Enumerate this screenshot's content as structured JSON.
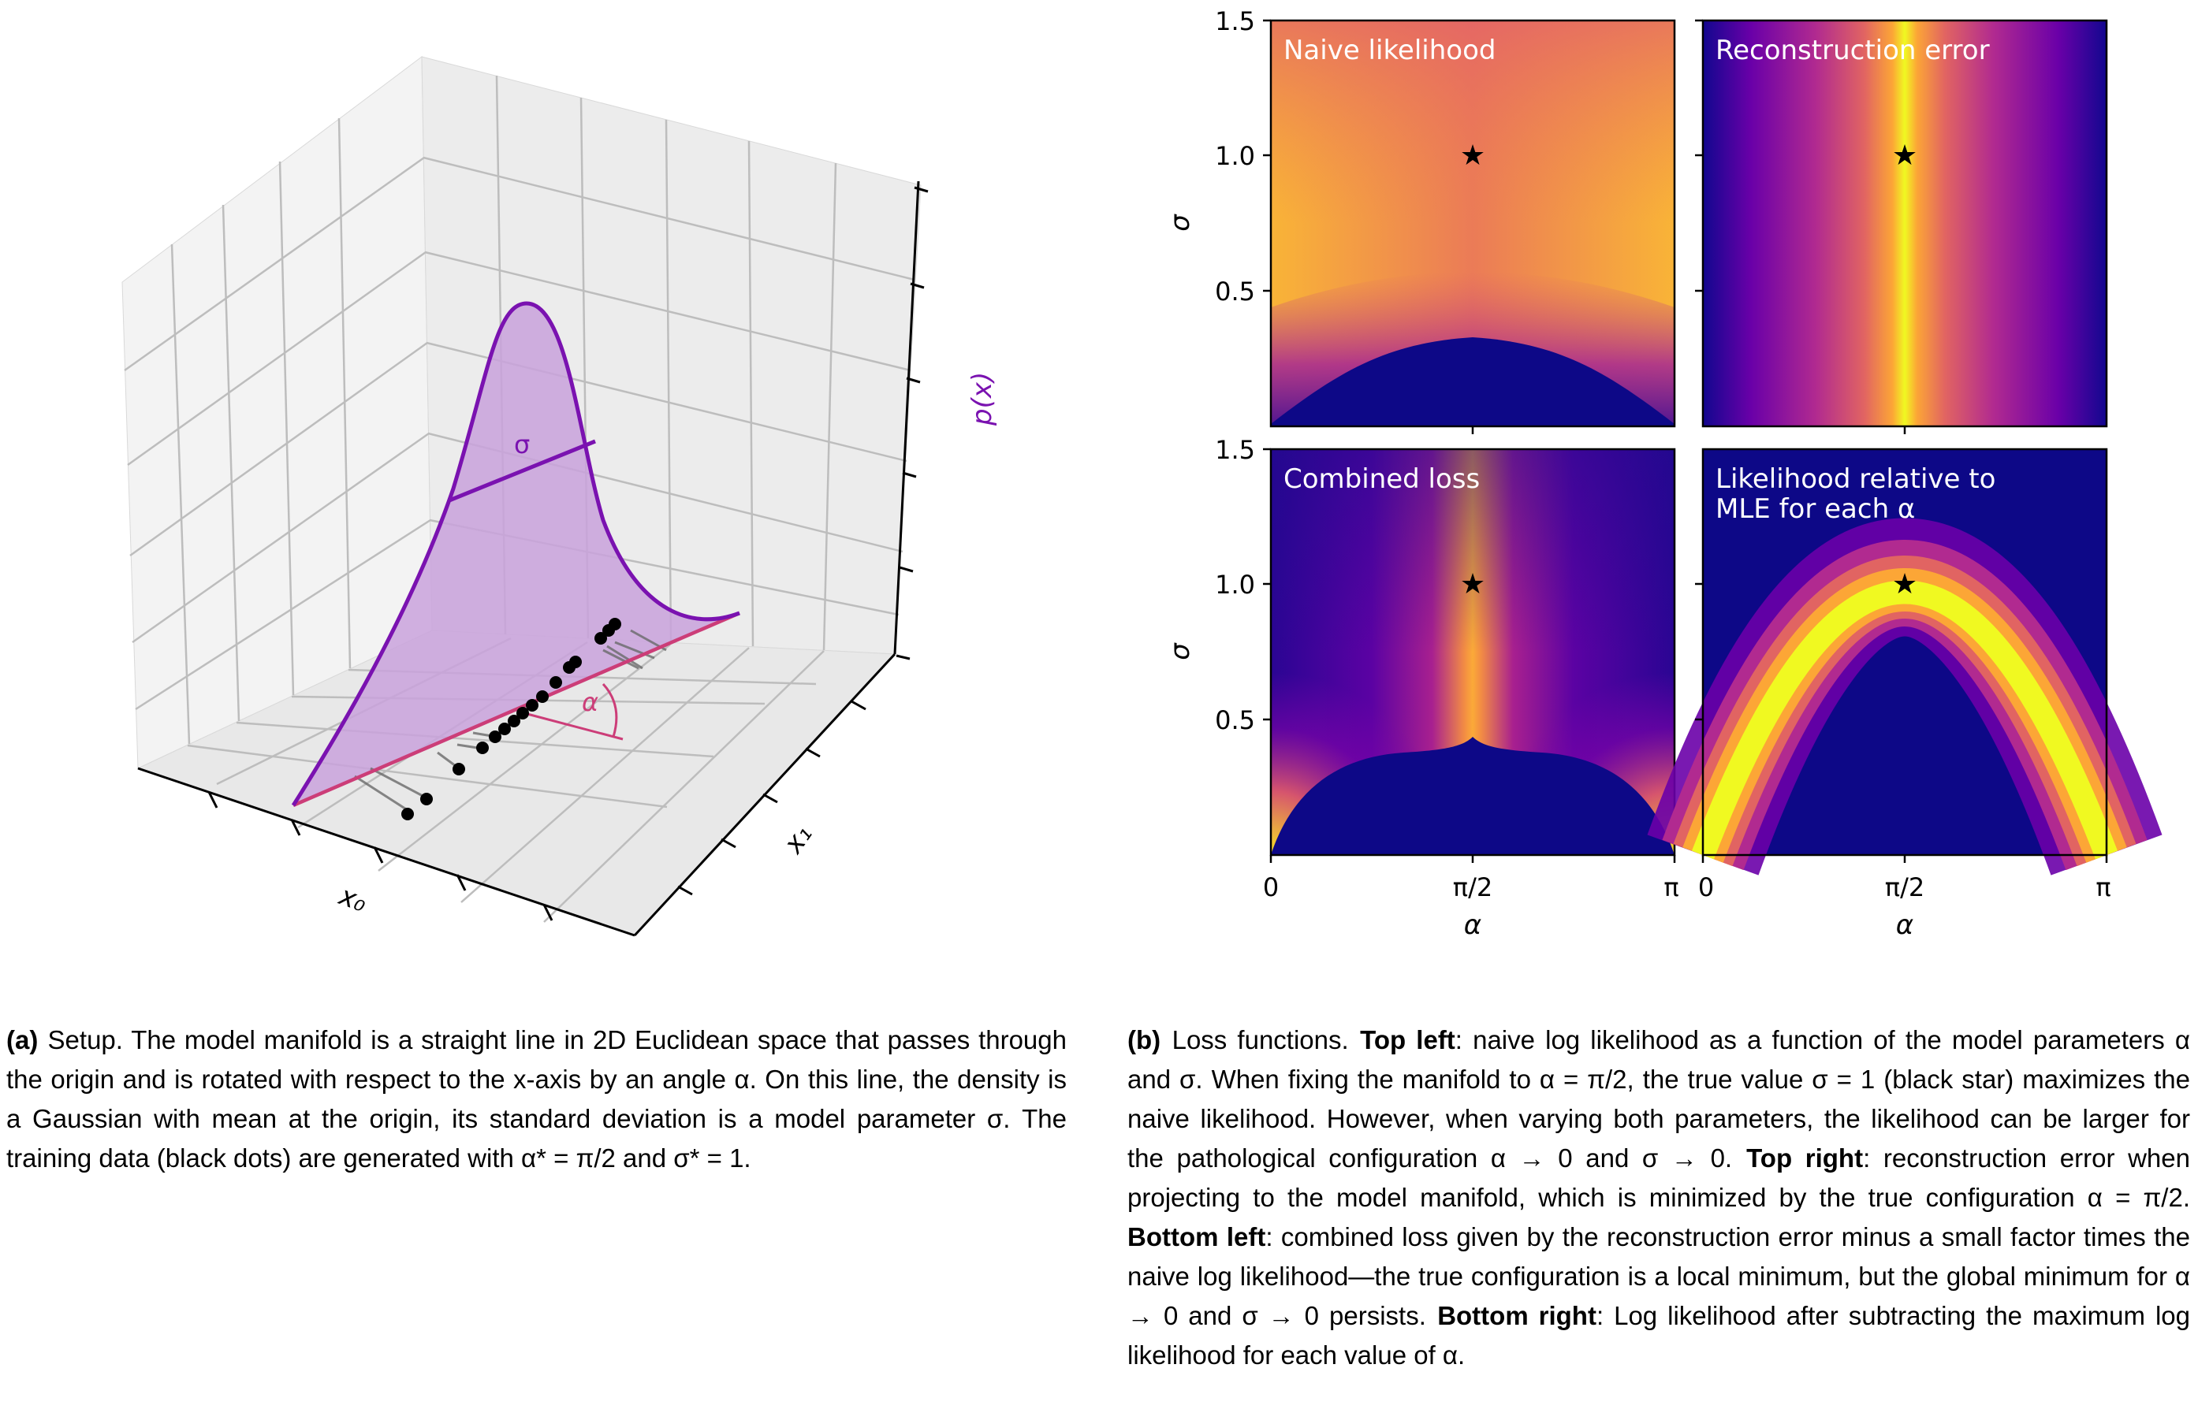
{
  "figure_a": {
    "axis_labels": {
      "x0": "x₀",
      "x1": "x₁",
      "z": "p(x)"
    },
    "sigma_label": "σ",
    "alpha_label": "α",
    "colors": {
      "curve": "#7a12b0",
      "fill": "#c9a2dc",
      "manifold": "#cc3d78",
      "dots": "#000000",
      "grid": "#bdbdbd"
    }
  },
  "figure_b": {
    "panels": [
      {
        "title": "Naive likelihood",
        "title_line2": ""
      },
      {
        "title": "Reconstruction error",
        "title_line2": ""
      },
      {
        "title": "Combined loss",
        "title_line2": ""
      },
      {
        "title": "Likelihood relative to",
        "title_line2": "MLE for each α"
      }
    ],
    "ylabel": "σ",
    "xlabel": "α",
    "yticks": [
      "1.5",
      "1.0",
      "0.5"
    ],
    "xticks": [
      "0",
      "π/2",
      "π"
    ]
  },
  "chart_data": {
    "type": "heatmap",
    "colormap": "plasma",
    "x": {
      "label": "α",
      "range": [
        0,
        3.1416
      ],
      "ticks": [
        "0",
        "π/2",
        "π"
      ]
    },
    "y": {
      "label": "σ",
      "range": [
        0,
        1.5
      ],
      "ticks": [
        "0.5",
        "1.0",
        "1.5"
      ]
    },
    "marker": {
      "alpha": 1.5708,
      "sigma": 1.0,
      "symbol": "★"
    },
    "panels": [
      "Naive likelihood",
      "Reconstruction error",
      "Combined loss",
      "Likelihood relative to MLE for each α"
    ]
  },
  "caption_a": {
    "label": "(a)",
    "text": "Setup. The model manifold is a straight line in 2D Euclidean space that passes through the origin and is rotated with respect to the x-axis by an angle α. On this line, the density is a Gaussian with mean at the origin, its standard deviation is a model parameter σ. The training data (black dots) are generated with α* = π/2 and σ* = 1."
  },
  "caption_b": {
    "label": "(b)",
    "text1": "Loss functions.",
    "tl_label": "Top left",
    "tl_text": ": naive log likelihood as a function of the model parameters α and σ. When fixing the manifold to α = π/2, the true value σ = 1 (black star) maximizes the naive likelihood. However, when varying both parameters, the likelihood can be larger for the pathological configuration α → 0 and σ → 0.",
    "tr_label": "Top right",
    "tr_text": ": reconstruction error when projecting to the model manifold, which is minimized by the true configuration α = π/2.",
    "bl_label": "Bottom left",
    "bl_text": ": combined loss given by the reconstruction error minus a small factor times the naive log likelihood—the true configuration is a local minimum, but the global minimum for α → 0 and σ → 0 persists.",
    "br_label": "Bottom right",
    "br_text": ": Log likelihood after subtracting the maximum log likelihood for each value of α."
  }
}
